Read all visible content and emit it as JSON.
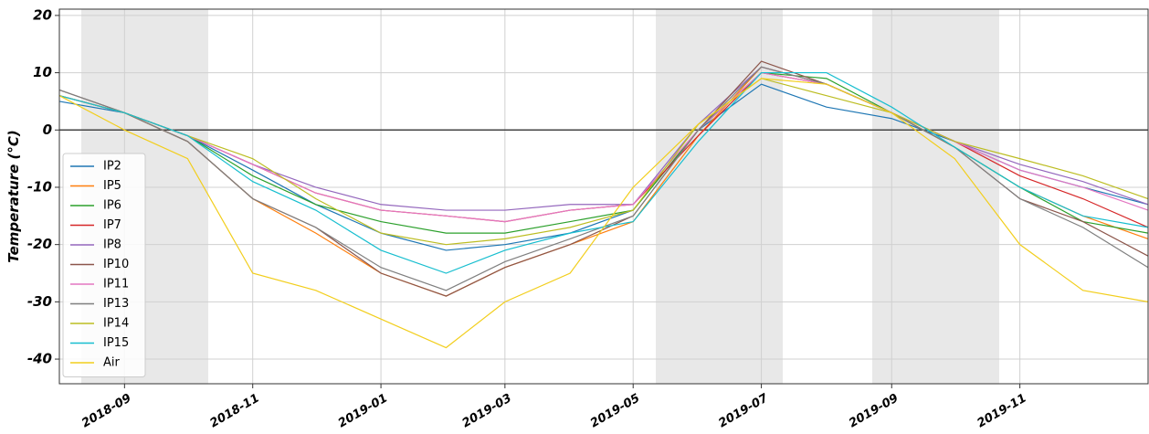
{
  "chart_data": {
    "type": "line",
    "y_label": "Temperature (°C)",
    "x": [
      "2018-08",
      "2018-09",
      "2018-10",
      "2018-11",
      "2018-12",
      "2019-01",
      "2019-02",
      "2019-03",
      "2019-04",
      "2019-05",
      "2019-06",
      "2019-07",
      "2019-08",
      "2019-09",
      "2019-10",
      "2019-11",
      "2019-12",
      "2020-01"
    ],
    "series": [
      {
        "name": "IP2",
        "color": "#1f77b4",
        "values": [
          5,
          3,
          -1,
          -7,
          -13,
          -18,
          -21,
          -20,
          -18,
          -14,
          0,
          8,
          4,
          2,
          -2,
          -7,
          -10,
          -13
        ]
      },
      {
        "name": "IP5",
        "color": "#ff7f0e",
        "values": [
          6,
          3,
          -2,
          -12,
          -18,
          -25,
          -29,
          -24,
          -20,
          -16,
          -1,
          11,
          8,
          3,
          -3,
          -10,
          -15,
          -19
        ]
      },
      {
        "name": "IP6",
        "color": "#2ca02c",
        "values": [
          6,
          3,
          -1,
          -8,
          -13,
          -16,
          -18,
          -18,
          -16,
          -14,
          0,
          10,
          9,
          3,
          -3,
          -10,
          -16,
          -18
        ]
      },
      {
        "name": "IP7",
        "color": "#d62728",
        "values": [
          6,
          3,
          -1,
          -6,
          -11,
          -14,
          -15,
          -16,
          -14,
          -13,
          -1,
          10,
          8,
          3,
          -2,
          -8,
          -12,
          -17
        ]
      },
      {
        "name": "IP8",
        "color": "#9467bd",
        "values": [
          6,
          3,
          -1,
          -6,
          -10,
          -13,
          -14,
          -14,
          -13,
          -13,
          1,
          11,
          8,
          3,
          -2,
          -6,
          -9,
          -13
        ]
      },
      {
        "name": "IP10",
        "color": "#8c564b",
        "values": [
          7,
          3,
          -2,
          -12,
          -17,
          -25,
          -29,
          -24,
          -20,
          -15,
          0,
          12,
          8,
          3,
          -3,
          -12,
          -16,
          -22
        ]
      },
      {
        "name": "IP11",
        "color": "#e377c2",
        "values": [
          6,
          3,
          -1,
          -6,
          -11,
          -14,
          -15,
          -16,
          -14,
          -13,
          0,
          10,
          8,
          3,
          -2,
          -7,
          -10,
          -14
        ]
      },
      {
        "name": "IP13",
        "color": "#7f7f7f",
        "values": [
          7,
          3,
          -2,
          -12,
          -17,
          -24,
          -28,
          -23,
          -19,
          -15,
          0,
          11,
          8,
          3,
          -3,
          -12,
          -17,
          -24
        ]
      },
      {
        "name": "IP14",
        "color": "#bcbd22",
        "values": [
          6,
          3,
          -1,
          -5,
          -12,
          -18,
          -20,
          -19,
          -17,
          -14,
          1,
          9,
          6,
          3,
          -2,
          -5,
          -8,
          -12
        ]
      },
      {
        "name": "IP15",
        "color": "#17becf",
        "values": [
          6,
          3,
          -1,
          -9,
          -14,
          -21,
          -25,
          -21,
          -18,
          -16,
          -2,
          10,
          10,
          4,
          -3,
          -10,
          -15,
          -17
        ]
      },
      {
        "name": "Air",
        "color": "#f2ce1c",
        "values": [
          6,
          0,
          -5,
          -25,
          -28,
          -33,
          -38,
          -30,
          -25,
          -10,
          1,
          9,
          8,
          3,
          -5,
          -20,
          -28,
          -30
        ]
      }
    ],
    "xlim": [
      "2018-08",
      "2020-01"
    ],
    "xticks": [
      "2018-09",
      "2018-11",
      "2019-01",
      "2019-03",
      "2019-05",
      "2019-07",
      "2019-09",
      "2019-11"
    ],
    "ylim": [
      -44.3,
      21.1
    ],
    "yticks": [
      20,
      10,
      0,
      -10,
      -20,
      -30,
      -40
    ],
    "grid": true,
    "legend": "left"
  }
}
